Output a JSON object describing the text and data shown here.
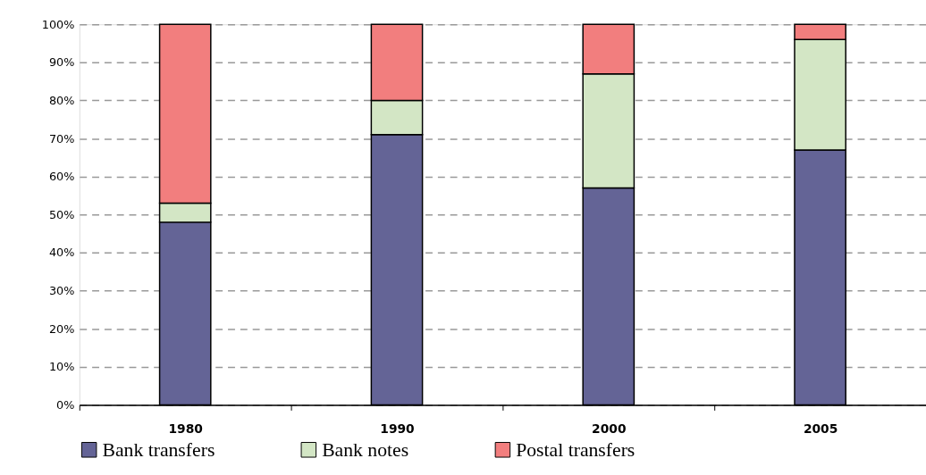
{
  "chart_data": {
    "type": "bar",
    "stacked": true,
    "categories": [
      "1980",
      "1990",
      "2000",
      "2005"
    ],
    "series": [
      {
        "name": "Bank transfers",
        "color": "#646496",
        "values": [
          48,
          71,
          57,
          67
        ]
      },
      {
        "name": "Bank notes",
        "color": "#d3e6c5",
        "values": [
          5,
          9,
          30,
          29
        ]
      },
      {
        "name": "Postal transfers",
        "color": "#f27e7e",
        "values": [
          47,
          20,
          13,
          4
        ]
      }
    ],
    "ylim": [
      0,
      100
    ],
    "yticks": [
      {
        "value": 0,
        "label": "0%"
      },
      {
        "value": 10,
        "label": "10%"
      },
      {
        "value": 20,
        "label": "20%"
      },
      {
        "value": 30,
        "label": "30%"
      },
      {
        "value": 40,
        "label": "40%"
      },
      {
        "value": 50,
        "label": "50%"
      },
      {
        "value": 60,
        "label": "60%"
      },
      {
        "value": 70,
        "label": "70%"
      },
      {
        "value": 80,
        "label": "80%"
      },
      {
        "value": 90,
        "label": "90%"
      },
      {
        "value": 100,
        "label": "100%"
      }
    ],
    "grid": "y",
    "legend": "bottom"
  }
}
